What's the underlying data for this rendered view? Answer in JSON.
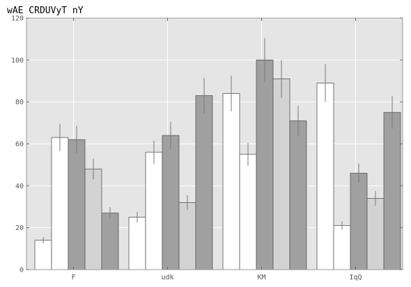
{
  "chart_data": {
    "type": "bar",
    "title": "wAE CRDUVyT nY",
    "xlabel": "",
    "ylabel": "",
    "categories": [
      "F",
      "udk",
      "KM",
      "IqQ"
    ],
    "ylim": [
      0,
      120
    ],
    "yticks": [
      0,
      20,
      40,
      60,
      80,
      100,
      120
    ],
    "grid": true,
    "legend": "none",
    "colors": {
      "plot_background": "#e5e5e5",
      "grid": "#ffffff",
      "error_bar": "#777777",
      "bar_edge": "#555555"
    },
    "series": [
      {
        "color": "#ffffff",
        "values": [
          14,
          25,
          84,
          89
        ],
        "errors": [
          1.5,
          2.5,
          8.5,
          9
        ]
      },
      {
        "color": "#ffffff",
        "values": [
          63,
          56,
          55,
          21
        ],
        "errors": [
          6.5,
          5.5,
          5.5,
          2
        ]
      },
      {
        "color": "#a0a0a0",
        "values": [
          62,
          64,
          100,
          46
        ],
        "errors": [
          6.5,
          6.5,
          10.5,
          4.5
        ]
      },
      {
        "color": "#d3d3d3",
        "values": [
          48,
          32,
          91,
          34
        ],
        "errors": [
          5,
          3.5,
          9,
          3.5
        ]
      },
      {
        "color": "#a0a0a0",
        "values": [
          27,
          83,
          71,
          75
        ],
        "errors": [
          2.8,
          8.5,
          7.2,
          7.8
        ]
      }
    ]
  }
}
